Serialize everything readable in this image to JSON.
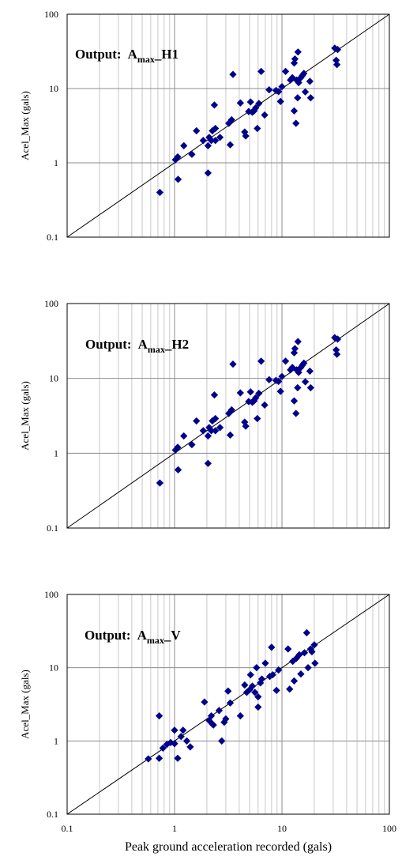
{
  "figure": {
    "shared_xlabel": "Peak ground acceleration recorded (gals)",
    "marker_color": "#00008b",
    "line_color": "#000000"
  },
  "chart_data": [
    {
      "type": "scatter",
      "title_prefix": "Output:",
      "title_main": "A",
      "title_sub": "max",
      "title_suffix": "_H1",
      "ylabel": "Acel_Max (gals)",
      "xlabel": "",
      "x_scale": "log",
      "y_scale": "log",
      "xlim": [
        0.1,
        100
      ],
      "ylim": [
        0.1,
        100
      ],
      "y_tick_labels": [
        "100",
        "10",
        "1",
        "0.1"
      ],
      "x_tick_labels": [],
      "grid": true,
      "reference_line": "y = x",
      "points": [
        [
          0.73,
          0.4
        ],
        [
          1.08,
          0.6
        ],
        [
          1.02,
          1.1
        ],
        [
          1.07,
          1.2
        ],
        [
          1.22,
          1.7
        ],
        [
          1.45,
          1.3
        ],
        [
          1.6,
          2.7
        ],
        [
          1.85,
          2.0
        ],
        [
          2.05,
          0.73
        ],
        [
          2.05,
          1.7
        ],
        [
          2.1,
          2.2
        ],
        [
          2.2,
          2.0
        ],
        [
          2.25,
          2.7
        ],
        [
          2.4,
          2.0
        ],
        [
          2.35,
          6.0
        ],
        [
          2.4,
          2.9
        ],
        [
          2.65,
          2.2
        ],
        [
          3.2,
          3.4
        ],
        [
          3.3,
          1.75
        ],
        [
          3.4,
          3.8
        ],
        [
          3.5,
          15.5
        ],
        [
          4.1,
          6.4
        ],
        [
          4.5,
          2.6
        ],
        [
          4.6,
          2.3
        ],
        [
          4.9,
          4.9
        ],
        [
          5.1,
          6.6
        ],
        [
          5.3,
          4.8
        ],
        [
          5.5,
          5.0
        ],
        [
          5.7,
          5.5
        ],
        [
          5.9,
          2.9
        ],
        [
          6.1,
          6.3
        ],
        [
          6.4,
          17.0
        ],
        [
          6.9,
          4.4
        ],
        [
          7.6,
          9.6
        ],
        [
          8.8,
          9.4
        ],
        [
          9.3,
          9.1
        ],
        [
          9.7,
          6.7
        ],
        [
          10.0,
          10.6
        ],
        [
          10.8,
          17.0
        ],
        [
          12.0,
          13.0
        ],
        [
          12.5,
          14.0
        ],
        [
          13.0,
          5.0
        ],
        [
          13.0,
          22.0
        ],
        [
          13.2,
          25.0
        ],
        [
          13.5,
          3.4
        ],
        [
          13.7,
          13.0
        ],
        [
          14.0,
          7.5
        ],
        [
          14.1,
          31.0
        ],
        [
          14.3,
          12.0
        ],
        [
          15.0,
          14.0
        ],
        [
          15.5,
          15.0
        ],
        [
          16.0,
          16.0
        ],
        [
          16.5,
          9.0
        ],
        [
          18.2,
          12.5
        ],
        [
          18.5,
          7.5
        ],
        [
          31.0,
          35.0
        ],
        [
          32.0,
          24.0
        ],
        [
          32.5,
          21.0
        ],
        [
          33.0,
          33.5
        ]
      ]
    },
    {
      "type": "scatter",
      "title_prefix": "Output:",
      "title_main": "A",
      "title_sub": "max",
      "title_suffix": "_H2",
      "ylabel": "Acel_Max (gals)",
      "xlabel": "",
      "x_scale": "log",
      "y_scale": "log",
      "xlim": [
        0.1,
        100
      ],
      "ylim": [
        0.1,
        100
      ],
      "y_tick_labels": [
        "100",
        "10",
        "1",
        "0.1"
      ],
      "x_tick_labels": [],
      "grid": true,
      "reference_line": "y = x",
      "points": [
        [
          0.73,
          0.4
        ],
        [
          1.08,
          0.6
        ],
        [
          1.02,
          1.1
        ],
        [
          1.07,
          1.2
        ],
        [
          1.22,
          1.7
        ],
        [
          1.45,
          1.3
        ],
        [
          1.6,
          2.7
        ],
        [
          1.85,
          2.0
        ],
        [
          2.05,
          0.73
        ],
        [
          2.05,
          1.7
        ],
        [
          2.1,
          2.2
        ],
        [
          2.2,
          2.0
        ],
        [
          2.25,
          2.7
        ],
        [
          2.4,
          2.0
        ],
        [
          2.35,
          6.0
        ],
        [
          2.4,
          2.9
        ],
        [
          2.65,
          2.2
        ],
        [
          3.2,
          3.4
        ],
        [
          3.3,
          1.75
        ],
        [
          3.4,
          3.8
        ],
        [
          3.5,
          15.5
        ],
        [
          4.1,
          6.4
        ],
        [
          4.5,
          2.6
        ],
        [
          4.6,
          2.3
        ],
        [
          4.9,
          4.9
        ],
        [
          5.1,
          6.6
        ],
        [
          5.3,
          4.8
        ],
        [
          5.5,
          5.0
        ],
        [
          5.7,
          5.5
        ],
        [
          5.9,
          2.9
        ],
        [
          6.1,
          6.3
        ],
        [
          6.4,
          17.0
        ],
        [
          6.9,
          4.4
        ],
        [
          7.6,
          9.6
        ],
        [
          8.8,
          9.4
        ],
        [
          9.3,
          9.1
        ],
        [
          9.7,
          6.7
        ],
        [
          10.0,
          10.6
        ],
        [
          10.8,
          17.0
        ],
        [
          12.0,
          13.0
        ],
        [
          12.5,
          14.0
        ],
        [
          13.0,
          5.0
        ],
        [
          13.0,
          22.0
        ],
        [
          13.2,
          25.0
        ],
        [
          13.5,
          3.4
        ],
        [
          13.7,
          13.0
        ],
        [
          14.0,
          7.5
        ],
        [
          14.1,
          31.0
        ],
        [
          14.3,
          12.0
        ],
        [
          15.0,
          14.0
        ],
        [
          15.5,
          15.0
        ],
        [
          16.0,
          16.0
        ],
        [
          16.5,
          9.0
        ],
        [
          18.2,
          12.5
        ],
        [
          18.5,
          7.5
        ],
        [
          31.0,
          35.0
        ],
        [
          32.0,
          24.0
        ],
        [
          32.5,
          21.0
        ],
        [
          33.0,
          33.5
        ]
      ]
    },
    {
      "type": "scatter",
      "title_prefix": "Output:",
      "title_main": "A",
      "title_sub": "max",
      "title_suffix": "_V",
      "ylabel": "Acel_Max (gals)",
      "xlabel": "Peak ground acceleration recorded (gals)",
      "x_scale": "log",
      "y_scale": "log",
      "xlim": [
        0.1,
        100
      ],
      "ylim": [
        0.1,
        100
      ],
      "y_tick_labels": [
        "100",
        "10",
        "1",
        "0.1"
      ],
      "x_tick_labels": [
        "0.1",
        "1",
        "10",
        "100"
      ],
      "grid": true,
      "reference_line": "y = x",
      "points": [
        [
          0.57,
          0.57
        ],
        [
          0.72,
          2.2
        ],
        [
          0.72,
          0.58
        ],
        [
          0.78,
          0.8
        ],
        [
          0.85,
          0.9
        ],
        [
          0.92,
          0.95
        ],
        [
          1.0,
          1.4
        ],
        [
          1.0,
          0.92
        ],
        [
          1.07,
          0.58
        ],
        [
          1.15,
          1.15
        ],
        [
          1.2,
          1.4
        ],
        [
          1.3,
          1.0
        ],
        [
          1.4,
          0.83
        ],
        [
          1.9,
          3.4
        ],
        [
          2.1,
          1.9
        ],
        [
          2.2,
          2.2
        ],
        [
          2.25,
          1.7
        ],
        [
          2.3,
          1.65
        ],
        [
          2.6,
          2.6
        ],
        [
          2.75,
          1.0
        ],
        [
          2.9,
          1.8
        ],
        [
          3.0,
          2.0
        ],
        [
          3.15,
          4.8
        ],
        [
          3.3,
          3.3
        ],
        [
          4.1,
          2.2
        ],
        [
          4.5,
          5.8
        ],
        [
          4.7,
          4.6
        ],
        [
          5.0,
          5.0
        ],
        [
          5.1,
          8.0
        ],
        [
          5.3,
          5.6
        ],
        [
          5.6,
          4.6
        ],
        [
          5.8,
          10.0
        ],
        [
          6.0,
          2.9
        ],
        [
          6.0,
          4.0
        ],
        [
          6.3,
          6.2
        ],
        [
          6.5,
          7.0
        ],
        [
          7.0,
          11.5
        ],
        [
          7.7,
          7.6
        ],
        [
          8.0,
          19.0
        ],
        [
          8.2,
          8.0
        ],
        [
          8.9,
          4.9
        ],
        [
          9.3,
          9.3
        ],
        [
          11.4,
          18.0
        ],
        [
          11.8,
          5.1
        ],
        [
          12.6,
          12.2
        ],
        [
          13.0,
          6.6
        ],
        [
          13.6,
          13.4
        ],
        [
          14.5,
          15.0
        ],
        [
          15.0,
          8.2
        ],
        [
          16.2,
          16.0
        ],
        [
          17.0,
          30.0
        ],
        [
          17.5,
          10.0
        ],
        [
          18.5,
          18.0
        ],
        [
          19.0,
          16.5
        ],
        [
          20.0,
          20.5
        ],
        [
          20.3,
          11.5
        ]
      ]
    }
  ]
}
